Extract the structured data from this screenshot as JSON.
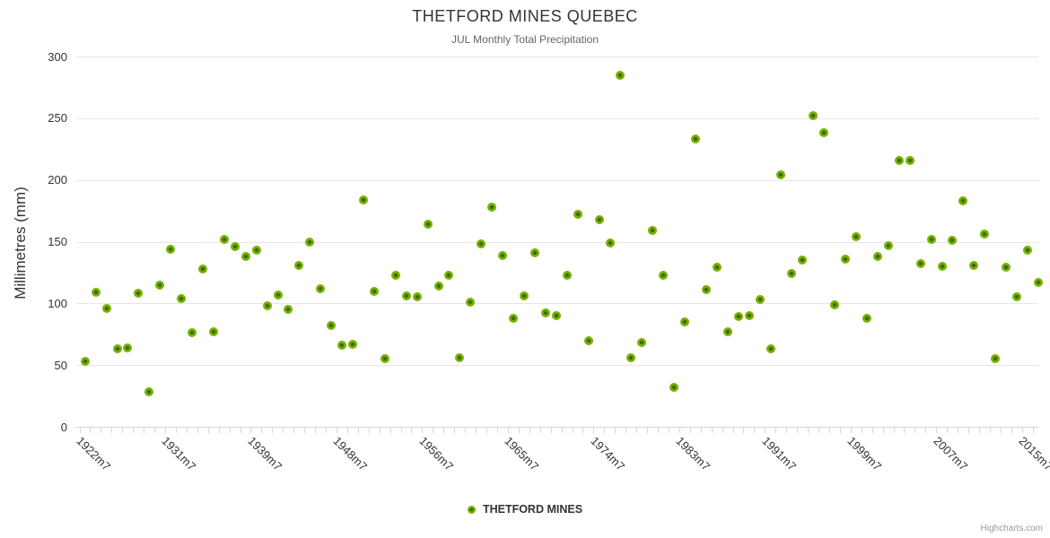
{
  "chart_data": {
    "type": "scatter",
    "title": "THETFORD MINES QUEBEC",
    "subtitle": "JUL Monthly Total Precipitation",
    "ylabel": "Millimetres (mm)",
    "ylim": [
      0,
      300
    ],
    "yticks": [
      0,
      50,
      100,
      150,
      200,
      250,
      300
    ],
    "grid": "horizontal",
    "legend_position": "bottom",
    "series_name": "THETFORD MINES",
    "n_points": 90,
    "x_tick_labels": [
      {
        "index": 0,
        "label": "1922m7"
      },
      {
        "index": 8,
        "label": "1931m7"
      },
      {
        "index": 16,
        "label": "1939m7"
      },
      {
        "index": 24,
        "label": "1948m7"
      },
      {
        "index": 32,
        "label": "1956m7"
      },
      {
        "index": 40,
        "label": "1965m7"
      },
      {
        "index": 48,
        "label": "1974m7"
      },
      {
        "index": 56,
        "label": "1983m7"
      },
      {
        "index": 64,
        "label": "1991m7"
      },
      {
        "index": 72,
        "label": "1999m7"
      },
      {
        "index": 80,
        "label": "2007m7"
      },
      {
        "index": 88,
        "label": "2015m7"
      }
    ],
    "values": [
      53,
      109,
      96,
      63,
      64,
      108,
      28,
      115,
      144,
      104,
      76,
      128,
      77,
      152,
      146,
      138,
      143,
      98,
      107,
      95,
      131,
      150,
      112,
      82,
      66,
      67,
      184,
      110,
      55,
      123,
      106,
      105,
      164,
      114,
      123,
      56,
      101,
      148,
      178,
      139,
      88,
      106,
      141,
      92,
      90,
      123,
      172,
      70,
      168,
      149,
      285,
      56,
      68,
      159,
      123,
      32,
      85,
      233,
      111,
      129,
      77,
      89,
      90,
      103,
      63,
      204,
      124,
      135,
      252,
      238,
      99,
      136,
      154,
      88,
      138,
      147,
      216,
      216,
      132,
      152,
      130,
      151,
      183,
      131,
      156,
      55,
      129,
      105,
      143,
      117
    ]
  },
  "colors": {
    "marker_fill": "#76B100",
    "marker_core": "#3A6A00",
    "gridline": "#E6E6E6",
    "axis_line": "#CCD6EB",
    "title": "#333333",
    "subtitle": "#666666",
    "labels": "#333333",
    "credits": "#999999"
  },
  "credits": "Highcharts.com"
}
